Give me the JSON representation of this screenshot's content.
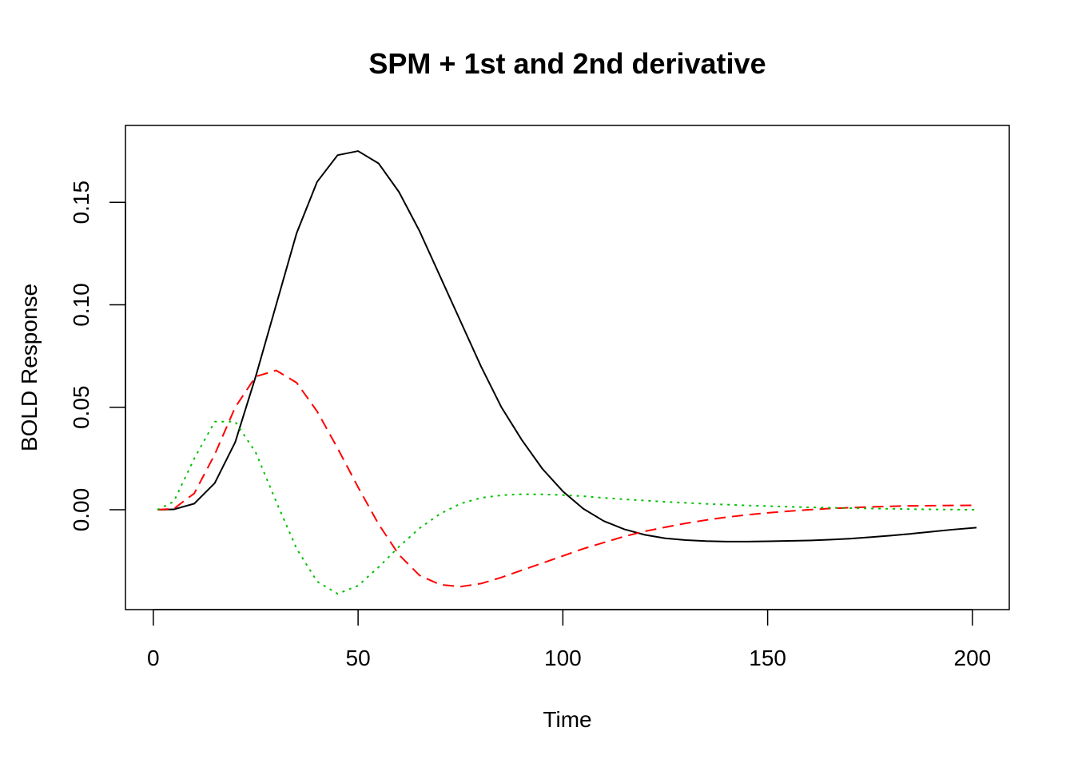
{
  "chart_data": {
    "type": "line",
    "title": "SPM + 1st and 2nd derivative",
    "xlabel": "Time",
    "ylabel": "BOLD Response",
    "xlim": [
      -6.8,
      209.0
    ],
    "ylim": [
      -0.0487,
      0.1875
    ],
    "xticks": [
      0,
      50,
      100,
      150,
      200
    ],
    "xtick_labels": [
      "0",
      "50",
      "100",
      "150",
      "200"
    ],
    "yticks": [
      0.0,
      0.05,
      0.1,
      0.15
    ],
    "ytick_labels": [
      "0.00",
      "0.05",
      "0.10",
      "0.15"
    ],
    "grid": false,
    "legend": "none",
    "series": [
      {
        "color": "#000000",
        "line_style": "solid",
        "x": [
          1,
          5,
          10,
          15,
          20,
          25,
          30,
          35,
          40,
          45,
          50,
          55,
          60,
          65,
          70,
          75,
          80,
          85,
          90,
          95,
          100,
          105,
          110,
          115,
          120,
          125,
          130,
          135,
          140,
          145,
          150,
          155,
          160,
          165,
          170,
          175,
          180,
          185,
          190,
          195,
          201
        ],
        "values": [
          0.0,
          0.0002,
          0.003,
          0.013,
          0.033,
          0.065,
          0.1,
          0.135,
          0.16,
          0.173,
          0.175,
          0.169,
          0.155,
          0.136,
          0.114,
          0.092,
          0.07,
          0.05,
          0.034,
          0.02,
          0.009,
          0.0005,
          -0.0055,
          -0.0095,
          -0.0122,
          -0.0139,
          -0.0148,
          -0.0153,
          -0.0155,
          -0.0155,
          -0.0154,
          -0.0152,
          -0.015,
          -0.0146,
          -0.0141,
          -0.0134,
          -0.0126,
          -0.0117,
          -0.0107,
          -0.0097,
          -0.0087
        ]
      },
      {
        "color": "#ff0000",
        "line_style": "dashed",
        "x": [
          1,
          5,
          10,
          15,
          20,
          25,
          30,
          35,
          40,
          45,
          50,
          55,
          60,
          65,
          70,
          75,
          80,
          85,
          90,
          95,
          100,
          105,
          110,
          115,
          120,
          125,
          130,
          135,
          140,
          145,
          150,
          155,
          160,
          165,
          170,
          175,
          180,
          185,
          190,
          195,
          201
        ],
        "values": [
          0.0,
          0.0005,
          0.008,
          0.027,
          0.05,
          0.065,
          0.068,
          0.062,
          0.048,
          0.03,
          0.011,
          -0.007,
          -0.022,
          -0.032,
          -0.0365,
          -0.0375,
          -0.036,
          -0.033,
          -0.0295,
          -0.026,
          -0.0225,
          -0.019,
          -0.016,
          -0.013,
          -0.0105,
          -0.0085,
          -0.0066,
          -0.005,
          -0.0036,
          -0.0025,
          -0.0015,
          -0.0007,
          0.0,
          0.0006,
          0.001,
          0.0014,
          0.0017,
          0.0019,
          0.002,
          0.0021,
          0.0022
        ]
      },
      {
        "color": "#00c000",
        "line_style": "dotted",
        "x": [
          1,
          5,
          10,
          15,
          20,
          25,
          30,
          35,
          40,
          45,
          50,
          55,
          60,
          65,
          70,
          75,
          80,
          85,
          90,
          95,
          100,
          105,
          110,
          115,
          120,
          125,
          130,
          135,
          140,
          145,
          150,
          155,
          160,
          165,
          170,
          175,
          180,
          185,
          190,
          195,
          201
        ],
        "values": [
          0.0,
          0.004,
          0.025,
          0.043,
          0.043,
          0.028,
          0.004,
          -0.019,
          -0.035,
          -0.041,
          -0.037,
          -0.028,
          -0.018,
          -0.009,
          -0.002,
          0.003,
          0.0058,
          0.0071,
          0.0076,
          0.0075,
          0.0072,
          0.0066,
          0.0058,
          0.0051,
          0.0045,
          0.0039,
          0.0034,
          0.0029,
          0.0025,
          0.0021,
          0.0018,
          0.0015,
          0.0012,
          0.001,
          0.0008,
          0.0006,
          0.0005,
          0.0003,
          0.0002,
          0.0001,
          0.0
        ]
      }
    ]
  }
}
